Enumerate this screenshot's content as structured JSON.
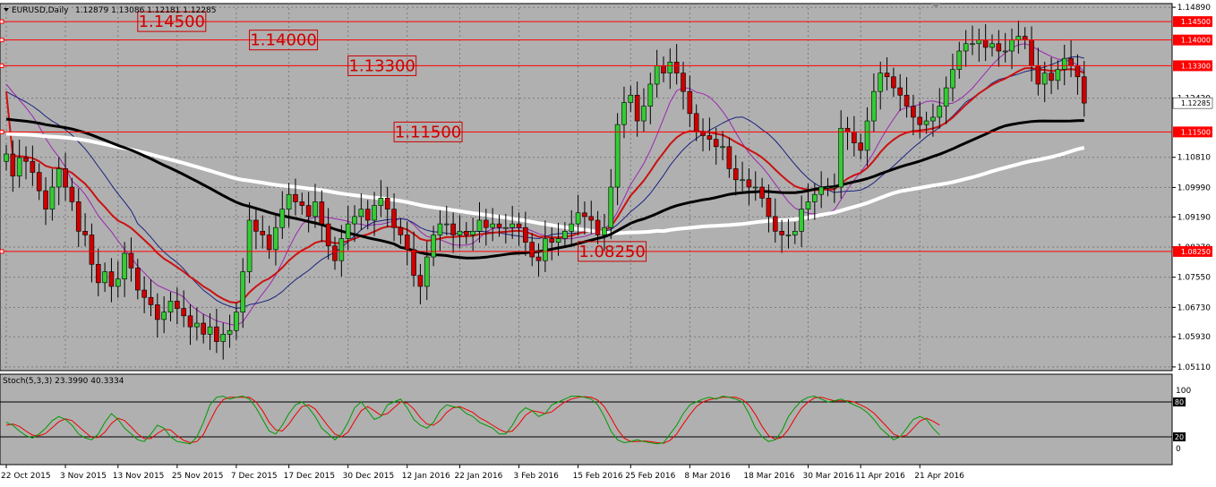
{
  "header": {
    "symbol": "EURUSD,Daily",
    "ohlc": "1.12879 1.13086 1.12181 1.12285"
  },
  "oscillator": {
    "label": "Stoch(5,3,3) 23.3990 40.3334",
    "scale_labels": [
      "100",
      "80",
      "20",
      "0"
    ]
  },
  "colors": {
    "background": "#b0b0b0",
    "bull": "#33cc33",
    "bear": "#cc0000",
    "level_line": "#ff0000",
    "ma_black": "#000000",
    "ma_white": "#ffffff",
    "ma_red": "#cc1111",
    "ma_navy": "#1a237e",
    "ma_purple": "#9c27b0",
    "stoch_main": "#009900",
    "stoch_signal": "#ee0000"
  },
  "chart_data": {
    "type": "candlestick",
    "instrument": "EURUSD",
    "timeframe": "Daily",
    "y_ticks": [
      1.1489,
      1.1242,
      1.1081,
      1.0999,
      1.0919,
      1.0837,
      1.0755,
      1.0673,
      1.0593,
      1.0511
    ],
    "y_tick_labels": [
      "1.14890",
      "1.12420",
      "1.10810",
      "1.09990",
      "1.09190",
      "1.08370",
      "1.07550",
      "1.06730",
      "1.05930",
      "1.05110"
    ],
    "ylim": [
      1.0501,
      1.1499
    ],
    "x_labels": [
      "22 Oct 2015",
      "3 Nov 2015",
      "13 Nov 2015",
      "25 Nov 2015",
      "7 Dec 2015",
      "17 Dec 2015",
      "30 Dec 2015",
      "12 Jan 2016",
      "22 Jan 2016",
      "3 Feb 2016",
      "15 Feb 2016",
      "25 Feb 2016",
      "8 Mar 2016",
      "18 Mar 2016",
      "30 Mar 2016",
      "11 Apr 2016",
      "21 Apr 2016"
    ],
    "x_label_bars": [
      0,
      9,
      17,
      26,
      35,
      43,
      52,
      61,
      69,
      78,
      87,
      95,
      104,
      113,
      122,
      130,
      139
    ],
    "levels": [
      {
        "price": 1.145,
        "label": "1.14500",
        "label_bar": 20
      },
      {
        "price": 1.14,
        "label": "1.14000",
        "label_bar": 37
      },
      {
        "price": 1.133,
        "label": "1.13300",
        "label_bar": 52
      },
      {
        "price": 1.115,
        "label": "1.11500",
        "label_bar": 59
      },
      {
        "price": 1.0825,
        "label": "1.08250",
        "label_bar": 87
      }
    ],
    "current_price": {
      "value": 1.12285,
      "label": "1.12285"
    },
    "closes": [
      1.109,
      1.103,
      1.108,
      1.107,
      1.104,
      1.099,
      1.094,
      1.1,
      1.105,
      1.1,
      1.096,
      1.088,
      1.087,
      1.079,
      1.074,
      1.077,
      1.073,
      1.075,
      1.082,
      1.078,
      1.072,
      1.07,
      1.068,
      1.064,
      1.066,
      1.069,
      1.067,
      1.065,
      1.062,
      1.063,
      1.06,
      1.062,
      1.058,
      1.06,
      1.061,
      1.066,
      1.077,
      1.091,
      1.088,
      1.087,
      1.083,
      1.089,
      1.094,
      1.098,
      1.096,
      1.095,
      1.092,
      1.096,
      1.09,
      1.084,
      1.08,
      1.086,
      1.09,
      1.092,
      1.094,
      1.091,
      1.095,
      1.097,
      1.094,
      1.089,
      1.087,
      1.083,
      1.076,
      1.073,
      1.081,
      1.087,
      1.09,
      1.09,
      1.087,
      1.088,
      1.087,
      1.088,
      1.091,
      1.089,
      1.09,
      1.089,
      1.089,
      1.09,
      1.089,
      1.085,
      1.081,
      1.08,
      1.086,
      1.085,
      1.086,
      1.088,
      1.09,
      1.093,
      1.092,
      1.091,
      1.087,
      1.089,
      1.1,
      1.117,
      1.123,
      1.125,
      1.118,
      1.122,
      1.128,
      1.133,
      1.131,
      1.134,
      1.131,
      1.126,
      1.12,
      1.115,
      1.114,
      1.113,
      1.111,
      1.111,
      1.105,
      1.102,
      1.102,
      1.1,
      1.1,
      1.097,
      1.092,
      1.088,
      1.087,
      1.087,
      1.088,
      1.094,
      1.096,
      1.098,
      1.1,
      1.1,
      1.1,
      1.116,
      1.115,
      1.112,
      1.11,
      1.118,
      1.126,
      1.131,
      1.13,
      1.127,
      1.125,
      1.122,
      1.119,
      1.117,
      1.118,
      1.119,
      1.122,
      1.127,
      1.132,
      1.137,
      1.139,
      1.139,
      1.14,
      1.138,
      1.139,
      1.137,
      1.137,
      1.14,
      1.141,
      1.14,
      1.133,
      1.128,
      1.131,
      1.129,
      1.132,
      1.135,
      1.133,
      1.13,
      1.12285
    ],
    "stoch": {
      "ylim": [
        0,
        100
      ],
      "main": [
        45,
        40,
        30,
        22,
        18,
        25,
        35,
        48,
        55,
        50,
        40,
        25,
        18,
        15,
        25,
        45,
        60,
        50,
        35,
        25,
        15,
        12,
        25,
        40,
        35,
        20,
        12,
        10,
        8,
        20,
        45,
        75,
        88,
        90,
        85,
        88,
        90,
        85,
        70,
        50,
        30,
        25,
        40,
        60,
        75,
        80,
        70,
        55,
        35,
        25,
        15,
        25,
        45,
        70,
        80,
        65,
        50,
        55,
        75,
        80,
        85,
        70,
        50,
        40,
        35,
        45,
        65,
        75,
        72,
        70,
        60,
        55,
        45,
        40,
        35,
        25,
        25,
        40,
        60,
        70,
        65,
        55,
        60,
        75,
        80,
        85,
        90,
        90,
        88,
        85,
        75,
        55,
        30,
        15,
        10,
        12,
        15,
        12,
        10,
        8,
        10,
        25,
        40,
        60,
        75,
        80,
        85,
        88,
        85,
        90,
        88,
        85,
        80,
        60,
        35,
        20,
        12,
        15,
        30,
        55,
        70,
        82,
        88,
        90,
        85,
        80,
        82,
        85,
        80,
        75,
        70,
        62,
        50,
        35,
        25,
        15,
        20,
        35,
        50,
        55,
        50,
        35,
        23.399
      ],
      "signal": [
        40,
        42,
        38,
        30,
        23,
        22,
        26,
        36,
        46,
        51,
        48,
        38,
        28,
        19,
        19,
        28,
        43,
        52,
        48,
        37,
        25,
        17,
        17,
        26,
        33,
        32,
        22,
        14,
        10,
        12,
        24,
        47,
        69,
        84,
        88,
        88,
        88,
        88,
        80,
        65,
        45,
        32,
        30,
        42,
        58,
        72,
        75,
        68,
        53,
        38,
        25,
        20,
        28,
        47,
        65,
        72,
        65,
        57,
        60,
        70,
        80,
        78,
        68,
        53,
        42,
        40,
        48,
        62,
        70,
        72,
        67,
        62,
        53,
        47,
        40,
        33,
        28,
        30,
        42,
        57,
        65,
        63,
        60,
        63,
        72,
        80,
        85,
        88,
        89,
        88,
        83,
        72,
        53,
        33,
        18,
        12,
        12,
        13,
        12,
        10,
        9,
        14,
        25,
        42,
        58,
        72,
        80,
        84,
        86,
        88,
        88,
        88,
        84,
        75,
        58,
        38,
        22,
        16,
        19,
        33,
        52,
        69,
        80,
        87,
        88,
        85,
        82,
        82,
        82,
        80,
        75,
        69,
        61,
        49,
        37,
        25,
        20,
        23,
        35,
        47,
        52,
        47,
        40.3334
      ]
    }
  }
}
